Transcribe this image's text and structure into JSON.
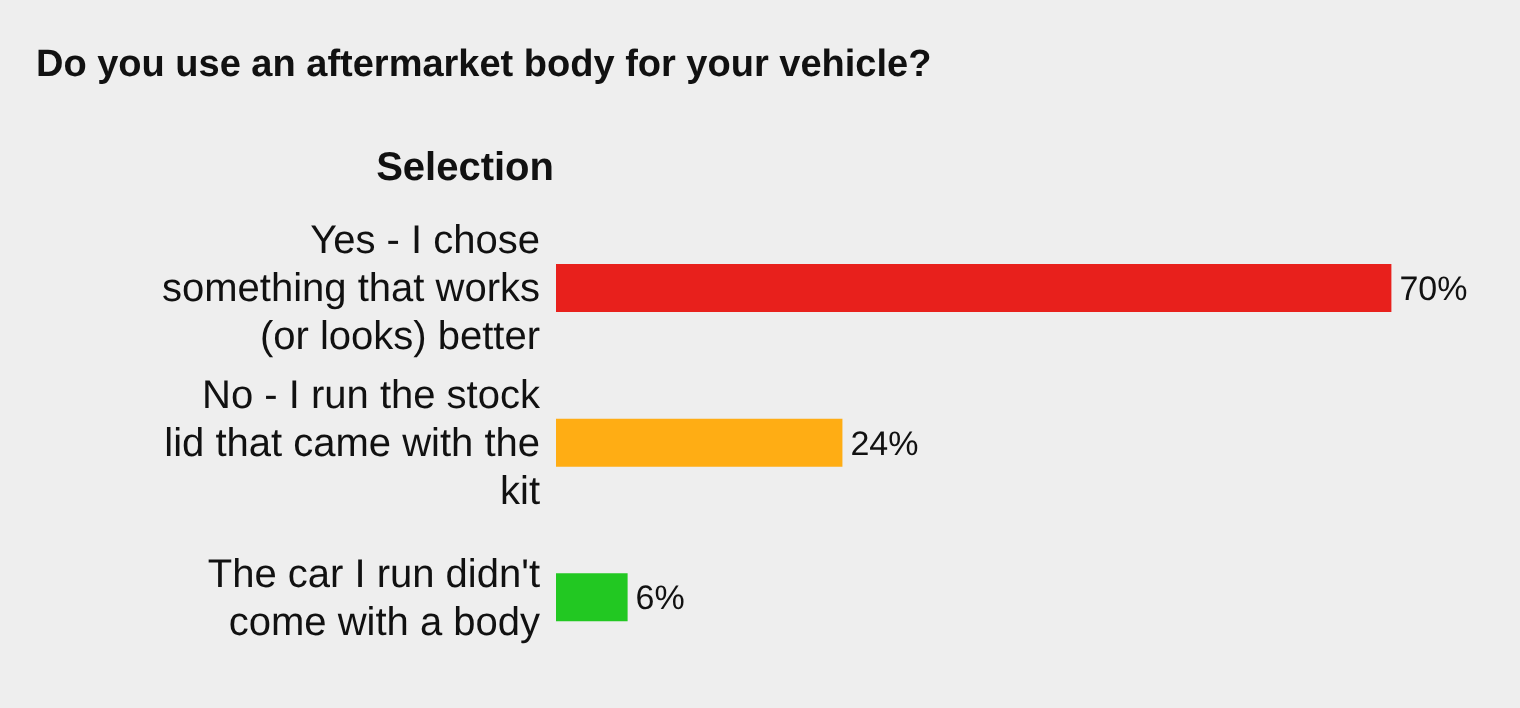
{
  "chart_data": {
    "type": "bar",
    "orientation": "horizontal",
    "title": "Do you use an aftermarket body for your vehicle?",
    "ylabel": "Selection",
    "categories": [
      "Yes - I chose something that works (or looks) better",
      "No - I run the stock lid that came with the kit",
      "The car I run didn't come with a body"
    ],
    "values": [
      70,
      24,
      6
    ],
    "colors": [
      "#e8201c",
      "#ffad14",
      "#22c822"
    ],
    "value_labels": [
      "70%",
      "24%",
      "6%"
    ],
    "grid": false,
    "legend": false
  }
}
